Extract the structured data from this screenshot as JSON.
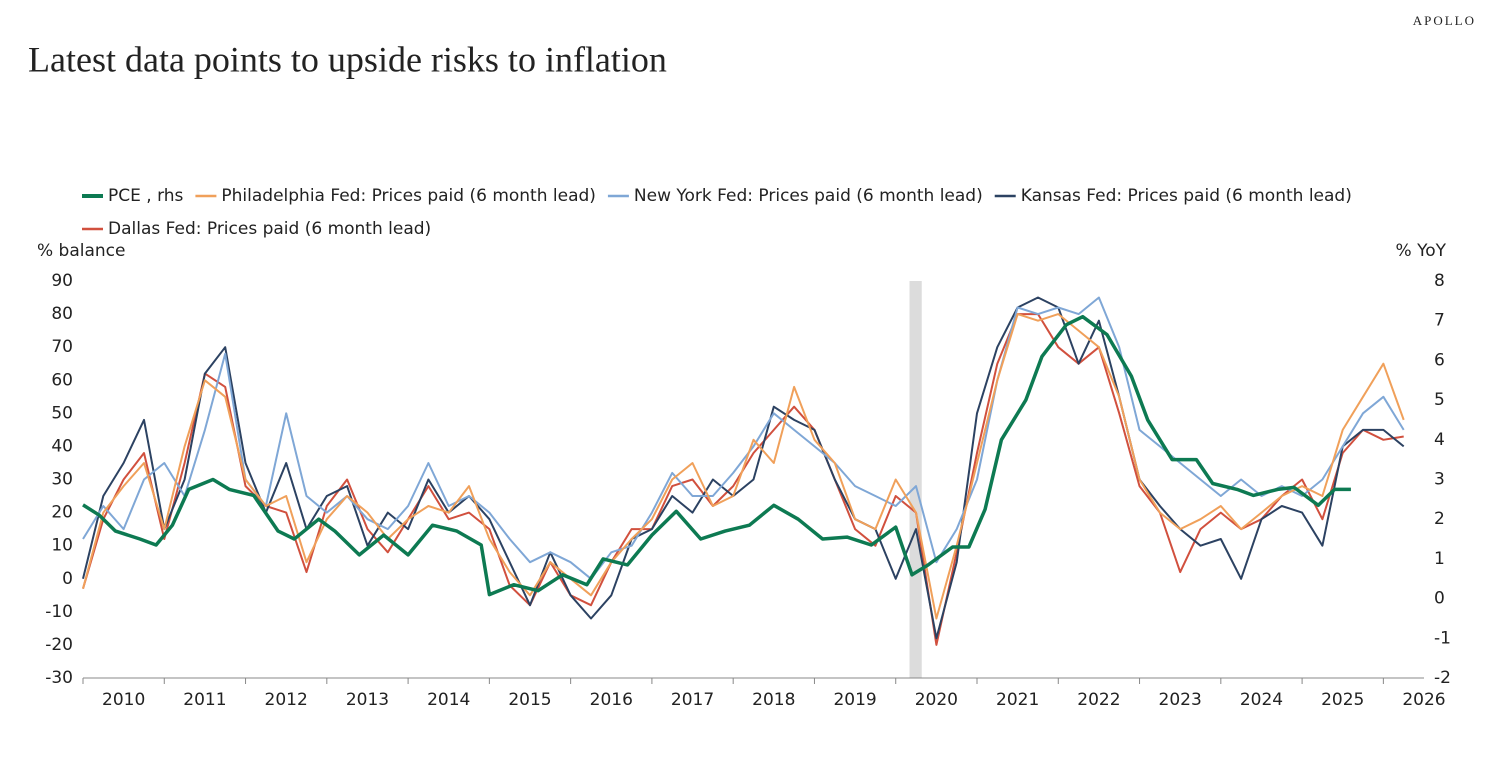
{
  "brand": "APOLLO",
  "chart_data": {
    "type": "line",
    "title": "Latest data points to upside risks to inflation",
    "y_label": "% balance",
    "y2_label": "% YoY",
    "xlim": [
      2010,
      2026.5
    ],
    "xticks": [
      2010,
      2011,
      2012,
      2013,
      2014,
      2015,
      2016,
      2017,
      2018,
      2019,
      2020,
      2021,
      2022,
      2023,
      2024,
      2025,
      2026
    ],
    "ylim": [
      -30,
      90
    ],
    "yticks": [
      -30,
      -20,
      -10,
      0,
      10,
      20,
      30,
      40,
      50,
      60,
      70,
      80,
      90
    ],
    "y2lim": [
      -2,
      8
    ],
    "y2ticks": [
      -2,
      -1,
      0,
      1,
      2,
      3,
      4,
      5,
      6,
      7,
      8
    ],
    "shade": [
      2020.17,
      2020.32
    ],
    "shade_color": "#dcdcdc",
    "x": [
      2010,
      2010.25,
      2010.5,
      2010.75,
      2011,
      2011.25,
      2011.5,
      2011.75,
      2012,
      2012.25,
      2012.5,
      2012.75,
      2013,
      2013.25,
      2013.5,
      2013.75,
      2014,
      2014.25,
      2014.5,
      2014.75,
      2015,
      2015.25,
      2015.5,
      2015.75,
      2016,
      2016.25,
      2016.5,
      2016.75,
      2017,
      2017.25,
      2017.5,
      2017.75,
      2018,
      2018.25,
      2018.5,
      2018.75,
      2019,
      2019.25,
      2019.5,
      2019.75,
      2020,
      2020.25,
      2020.5,
      2020.75,
      2021,
      2021.25,
      2021.5,
      2021.75,
      2022,
      2022.25,
      2022.5,
      2022.75,
      2023,
      2023.25,
      2023.5,
      2023.75,
      2024,
      2024.25,
      2024.5,
      2024.75,
      2025,
      2025.25,
      2025.5,
      2025.75,
      2026,
      2026.25
    ],
    "series": [
      {
        "name": "PCE , rhs",
        "color": "#0d7a52",
        "axis": "y2",
        "x": [
          2010,
          2010.2,
          2010.4,
          2010.7,
          2010.9,
          2011.1,
          2011.3,
          2011.6,
          2011.8,
          2012.1,
          2012.4,
          2012.6,
          2012.9,
          2013.1,
          2013.4,
          2013.7,
          2014,
          2014.3,
          2014.6,
          2014.9,
          2015,
          2015.3,
          2015.6,
          2015.9,
          2016.2,
          2016.4,
          2016.7,
          2017,
          2017.3,
          2017.6,
          2017.9,
          2018.2,
          2018.5,
          2018.8,
          2019.1,
          2019.4,
          2019.7,
          2020,
          2020.2,
          2020.4,
          2020.7,
          2020.9,
          2021.1,
          2021.3,
          2021.6,
          2021.8,
          2022.1,
          2022.3,
          2022.6,
          2022.9,
          2023.1,
          2023.4,
          2023.7,
          2023.9,
          2024.2,
          2024.4,
          2024.7,
          2024.9,
          2025.2,
          2025.4,
          2025.6
        ],
        "values": [
          2.36,
          2.1,
          1.7,
          1.5,
          1.35,
          1.85,
          2.75,
          3.0,
          2.75,
          2.6,
          1.7,
          1.5,
          2.0,
          1.7,
          1.1,
          1.6,
          1.1,
          1.85,
          1.7,
          1.35,
          0.1,
          0.35,
          0.2,
          0.6,
          0.35,
          1.0,
          0.85,
          1.6,
          2.2,
          1.5,
          1.7,
          1.85,
          2.35,
          2.0,
          1.5,
          1.55,
          1.35,
          1.8,
          0.6,
          0.85,
          1.3,
          1.3,
          2.25,
          4.0,
          5.0,
          6.1,
          6.9,
          7.1,
          6.65,
          5.6,
          4.5,
          3.5,
          3.5,
          2.9,
          2.75,
          2.6,
          2.75,
          2.8,
          2.35,
          2.75,
          2.75
        ]
      },
      {
        "name": "Philadelphia Fed: Prices paid (6 month lead)",
        "color": "#f0a05a",
        "values": [
          -3,
          20,
          28,
          35,
          15,
          40,
          60,
          55,
          30,
          22,
          25,
          5,
          18,
          25,
          20,
          12,
          18,
          22,
          20,
          28,
          12,
          2,
          -5,
          5,
          0,
          -5,
          5,
          12,
          18,
          30,
          35,
          22,
          25,
          42,
          35,
          58,
          42,
          35,
          18,
          15,
          30,
          20,
          -12,
          10,
          35,
          60,
          80,
          78,
          80,
          75,
          70,
          55,
          30,
          20,
          15,
          18,
          22,
          15,
          20,
          25,
          28,
          25,
          45,
          55,
          65,
          48
        ]
      },
      {
        "name": "New York Fed: Prices paid (6 month lead)",
        "color": "#7fa7d6",
        "values": [
          12,
          22,
          15,
          30,
          35,
          25,
          45,
          68,
          30,
          22,
          50,
          25,
          20,
          25,
          18,
          15,
          22,
          35,
          22,
          25,
          20,
          12,
          5,
          8,
          5,
          0,
          8,
          10,
          20,
          32,
          25,
          25,
          32,
          40,
          50,
          45,
          40,
          35,
          28,
          25,
          22,
          28,
          5,
          15,
          30,
          60,
          82,
          80,
          82,
          80,
          85,
          70,
          45,
          40,
          35,
          30,
          25,
          30,
          25,
          28,
          25,
          30,
          40,
          50,
          55,
          45
        ]
      },
      {
        "name": "Kansas Fed: Prices paid (6 month lead)",
        "color": "#2c4262",
        "values": [
          0,
          25,
          35,
          48,
          15,
          30,
          62,
          70,
          35,
          20,
          35,
          15,
          25,
          28,
          10,
          20,
          15,
          30,
          20,
          25,
          18,
          5,
          -8,
          8,
          -5,
          -12,
          -5,
          12,
          15,
          25,
          20,
          30,
          25,
          30,
          52,
          48,
          45,
          30,
          18,
          15,
          0,
          15,
          -18,
          5,
          50,
          70,
          82,
          85,
          82,
          65,
          78,
          55,
          30,
          22,
          15,
          10,
          12,
          0,
          18,
          22,
          20,
          10,
          40,
          45,
          45,
          40
        ]
      },
      {
        "name": "Dallas Fed: Prices paid (6 month lead)",
        "color": "#d1503e",
        "values": [
          -3,
          18,
          30,
          38,
          12,
          35,
          62,
          58,
          28,
          22,
          20,
          2,
          22,
          30,
          15,
          8,
          18,
          28,
          18,
          20,
          15,
          -2,
          -8,
          5,
          -5,
          -8,
          5,
          15,
          15,
          28,
          30,
          22,
          28,
          38,
          45,
          52,
          45,
          30,
          15,
          10,
          25,
          20,
          -20,
          8,
          38,
          65,
          80,
          80,
          70,
          65,
          70,
          50,
          28,
          20,
          2,
          15,
          20,
          15,
          18,
          25,
          30,
          18,
          38,
          45,
          42,
          43
        ]
      }
    ]
  }
}
